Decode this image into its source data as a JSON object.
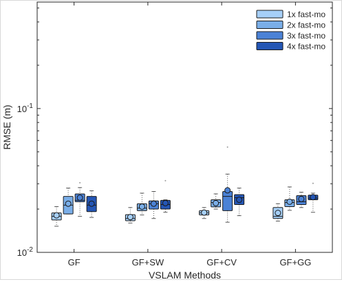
{
  "chart_data": {
    "type": "box",
    "xlabel": "VSLAM Methods",
    "ylabel": "RMSE (m)",
    "yscale": "log",
    "ylim": [
      0.01,
      0.55
    ],
    "categories": [
      "GF",
      "GF+SW",
      "GF+CV",
      "GF+GG"
    ],
    "y_ticks": [
      {
        "base": "10",
        "exp": "-2"
      },
      {
        "base": "10",
        "exp": "-1"
      }
    ],
    "legend_position": "top-right",
    "series": [
      {
        "name": "1x fast-mo",
        "color": "#a6cff7",
        "boxes": [
          {
            "min": 0.0152,
            "q1": 0.0168,
            "median": 0.0178,
            "q3": 0.0188,
            "max": 0.0208,
            "mean": 0.0181,
            "outliers": []
          },
          {
            "min": 0.016,
            "q1": 0.0166,
            "median": 0.0172,
            "q3": 0.0183,
            "max": 0.0205,
            "mean": 0.0176,
            "outliers": []
          },
          {
            "min": 0.0172,
            "q1": 0.0182,
            "median": 0.0188,
            "q3": 0.0195,
            "max": 0.0205,
            "mean": 0.0189,
            "outliers": []
          },
          {
            "min": 0.0165,
            "q1": 0.0172,
            "median": 0.0178,
            "q3": 0.0205,
            "max": 0.0218,
            "mean": 0.0188,
            "outliers": []
          }
        ]
      },
      {
        "name": "2x fast-mo",
        "color": "#7aaee8",
        "boxes": [
          {
            "min": 0.0185,
            "q1": 0.0185,
            "median": 0.0213,
            "q3": 0.0245,
            "max": 0.028,
            "mean": 0.0218,
            "outliers": []
          },
          {
            "min": 0.0182,
            "q1": 0.0195,
            "median": 0.0203,
            "q3": 0.0218,
            "max": 0.0258,
            "mean": 0.0208,
            "outliers": []
          },
          {
            "min": 0.02,
            "q1": 0.0207,
            "median": 0.0222,
            "q3": 0.0232,
            "max": 0.0255,
            "mean": 0.022,
            "outliers": []
          },
          {
            "min": 0.0196,
            "q1": 0.0208,
            "median": 0.0222,
            "q3": 0.0232,
            "max": 0.0285,
            "mean": 0.0225,
            "outliers": []
          }
        ]
      },
      {
        "name": "3x fast-mo",
        "color": "#4b82d6",
        "boxes": [
          {
            "min": 0.0178,
            "q1": 0.0225,
            "median": 0.023,
            "q3": 0.0255,
            "max": 0.0282,
            "mean": 0.024,
            "outliers": [
              0.0305
            ]
          },
          {
            "min": 0.0172,
            "q1": 0.02,
            "median": 0.0218,
            "q3": 0.0228,
            "max": 0.0265,
            "mean": 0.0218,
            "outliers": []
          },
          {
            "min": 0.0162,
            "q1": 0.0195,
            "median": 0.0245,
            "q3": 0.0265,
            "max": 0.035,
            "mean": 0.027,
            "outliers": [
              0.054
            ]
          },
          {
            "min": 0.0205,
            "q1": 0.0215,
            "median": 0.0225,
            "q3": 0.0248,
            "max": 0.0262,
            "mean": 0.0235,
            "outliers": []
          }
        ]
      },
      {
        "name": "4x fast-mo",
        "color": "#2456b5",
        "boxes": [
          {
            "min": 0.0175,
            "q1": 0.0192,
            "median": 0.0213,
            "q3": 0.0245,
            "max": 0.0268,
            "mean": 0.0218,
            "outliers": []
          },
          {
            "min": 0.019,
            "q1": 0.02,
            "median": 0.0215,
            "q3": 0.023,
            "max": 0.0232,
            "mean": 0.022,
            "outliers": [
              0.0315
            ]
          },
          {
            "min": 0.018,
            "q1": 0.0215,
            "median": 0.024,
            "q3": 0.0252,
            "max": 0.028,
            "mean": 0.0232,
            "outliers": []
          },
          {
            "min": 0.019,
            "q1": 0.0232,
            "median": 0.0238,
            "q3": 0.025,
            "max": 0.0258,
            "mean": 0.0242,
            "outliers": [
              0.0302
            ]
          }
        ]
      }
    ]
  }
}
